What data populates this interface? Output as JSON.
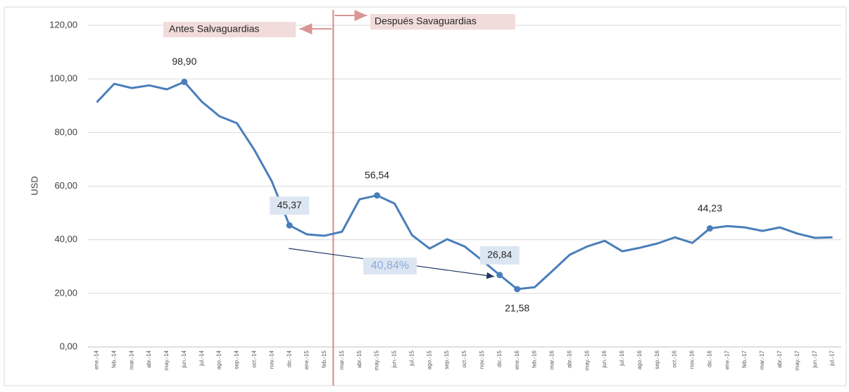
{
  "chart_data": {
    "type": "line",
    "y_label": "USD",
    "categories": [
      "ene.-14",
      "feb.-14",
      "mar.-14",
      "abr.-14",
      "may.-14",
      "jun.-14",
      "jul.-14",
      "ago.-14",
      "sep.-14",
      "oct.-14",
      "nov.-14",
      "dic.-14",
      "ene.-15",
      "feb.-15",
      "mar.-15",
      "abr.-15",
      "may.-15",
      "jun.-15",
      "jul.-15",
      "ago.-15",
      "sep.-15",
      "oct.-15",
      "nov.-15",
      "dic.-15",
      "ene.-16",
      "feb.-16",
      "mar.-16",
      "abr.-16",
      "may.-16",
      "jun.-16",
      "jul.-16",
      "ago.-16",
      "sep.-16",
      "oct.-16",
      "nov.-16",
      "dic.-16",
      "ene.-17",
      "feb.-17",
      "mar.-17",
      "abr.-17",
      "may.-17",
      "jun.-17",
      "jul.-17"
    ],
    "series": [
      {
        "name": "USD",
        "color": "#4a7ebb",
        "values": [
          91.3,
          98.2,
          96.6,
          97.6,
          96.1,
          98.9,
          91.5,
          86.1,
          83.5,
          73.5,
          61.7,
          45.37,
          42.0,
          41.5,
          43.0,
          55.1,
          56.54,
          53.5,
          41.7,
          36.7,
          40.2,
          37.5,
          32.3,
          26.84,
          21.58,
          22.3,
          28.3,
          34.4,
          37.5,
          39.6,
          35.7,
          37.0,
          38.6,
          40.9,
          38.8,
          44.23,
          45.1,
          44.6,
          43.3,
          44.6,
          42.3,
          40.7,
          40.9
        ],
        "value_labels": [
          null,
          null,
          null,
          null,
          null,
          "98,90",
          null,
          null,
          null,
          null,
          null,
          "45,37",
          null,
          null,
          null,
          null,
          "56,54",
          null,
          null,
          null,
          null,
          null,
          null,
          "26,84",
          "21,58",
          null,
          null,
          null,
          null,
          null,
          null,
          null,
          null,
          null,
          null,
          "44,23",
          null,
          null,
          null,
          null,
          null,
          null,
          null
        ]
      }
    ],
    "ylim": [
      0,
      120
    ],
    "yticks": [
      {
        "value": 0,
        "label": "0,00"
      },
      {
        "value": 20,
        "label": "20,00"
      },
      {
        "value": 40,
        "label": "40,00"
      },
      {
        "value": 60,
        "label": "60,00"
      },
      {
        "value": 80,
        "label": "80,00"
      },
      {
        "value": 100,
        "label": "100,00"
      },
      {
        "value": 120,
        "label": "120,00"
      }
    ],
    "grid": true,
    "annotations": {
      "before": "Antes Salvaguardias",
      "after": "Después Savaguardias",
      "change": "40,84%"
    }
  }
}
